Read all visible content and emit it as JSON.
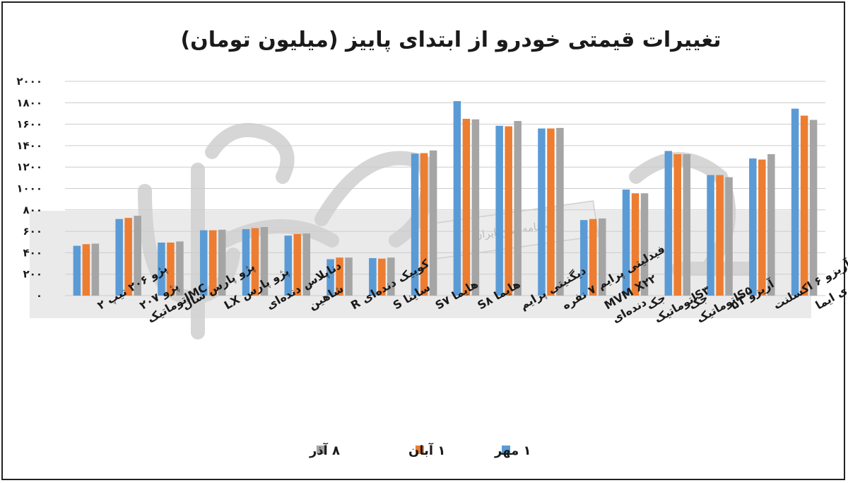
{
  "chart_data": {
    "type": "bar",
    "title": "تغییرات قیمتی خودرو از ابتدای پاییز (میلیون تومان)",
    "ylim": [
      0,
      2000
    ],
    "yticks": [
      "۰",
      "۲۰۰",
      "۴۰۰",
      "۶۰۰",
      "۸۰۰",
      "۱۰۰۰",
      "۱۲۰۰",
      "۱۴۰۰",
      "۱۶۰۰",
      "۱۸۰۰",
      "۲۰۰۰"
    ],
    "ytick_values": [
      0,
      200,
      400,
      600,
      800,
      1000,
      1200,
      1400,
      1600,
      1800,
      2000
    ],
    "grid": true,
    "legend_position": "bottom",
    "categories": [
      [
        "پژو ۲۰۶ تیپ ۲"
      ],
      [
        "پژو ۲۰۷",
        "MCاتوماتیک"
      ],
      [
        "پژو پارس سال"
      ],
      [
        "پژو پارس LX"
      ],
      [
        "دناپلاس دنده‌ای"
      ],
      [
        "شاهین"
      ],
      [
        "کوییک دنده‌ای R"
      ],
      [
        "ساینا S"
      ],
      [
        "هایما S۷"
      ],
      [
        "هایما S۸"
      ],
      [
        "دیگنیتی پرایم"
      ],
      [
        "فیدلیتی پرایم ۷ نفره"
      ],
      [
        "MVM X۲۲",
        "دنده‌ای"
      ],
      [
        "جک",
        "S۳اتوماتیک"
      ],
      [
        "جک",
        "S۵اتوماتیک"
      ],
      [
        "آریزو ۵T"
      ],
      [
        "آریزو ۶ اکسلنت"
      ],
      [
        "لاماری ایما"
      ]
    ],
    "series": [
      {
        "name": "۱ مهر",
        "color": "#5B9BD5",
        "values": [
          465,
          715,
          495,
          610,
          620,
          560,
          340,
          350,
          1325,
          1815,
          1585,
          1560,
          705,
          990,
          1350,
          1125,
          1280,
          1745
        ]
      },
      {
        "name": "۱ آبان",
        "color": "#ED7D31",
        "values": [
          480,
          725,
          495,
          610,
          630,
          575,
          355,
          345,
          1330,
          1650,
          1580,
          1560,
          715,
          955,
          1320,
          1125,
          1270,
          1680
        ]
      },
      {
        "name": "۸ آذر",
        "color": "#A5A5A5",
        "values": [
          485,
          745,
          505,
          615,
          640,
          580,
          355,
          355,
          1355,
          1645,
          1630,
          1565,
          720,
          955,
          1320,
          1105,
          1320,
          1640
        ]
      }
    ]
  },
  "watermark": {
    "brand": "دنیای اقتصاد",
    "tagline": "روزنامه صبح ایران"
  },
  "colors": {
    "frame": "#222222",
    "grid": "#cccccc"
  }
}
